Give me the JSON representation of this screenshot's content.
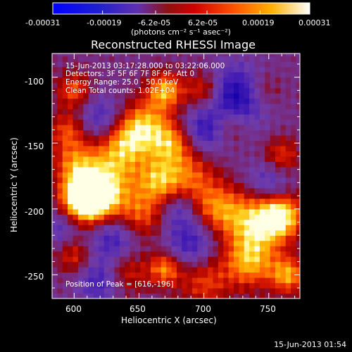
{
  "colorbar": {
    "ticks": [
      "-0.00031",
      "-0.00019",
      "-6.2e-05",
      "6.2e-05",
      "0.00019",
      "0.00031"
    ],
    "tick_values": [
      -0.00031,
      -0.00019,
      -6.2e-05,
      6.2e-05,
      0.00019,
      0.00031
    ],
    "unit_label": "(photons cm⁻² s⁻¹ asec⁻²)"
  },
  "chart_data": {
    "type": "heatmap",
    "title": "Reconstructed RHESSI Image",
    "xlabel": "Heliocentric X (arcsec)",
    "ylabel": "Heliocentric Y (arcsec)",
    "xlim": [
      583,
      774
    ],
    "ylim": [
      -268,
      -82
    ],
    "x_ticks": [
      600,
      650,
      700,
      750
    ],
    "y_ticks": [
      -100,
      -150,
      -200,
      -250
    ],
    "colormap": "Hot (black-blue-purple-red-orange-yellow-white)",
    "value_range": [
      -0.00031,
      0.00031
    ],
    "annotations": [
      "15-Jun-2013 03:17:28.000 to 03:22:06.000",
      "Detectors: 3F 5F 6F 7F 8F 9F, Att 0",
      "Energy Range: 25.0 - 50.0 keV",
      "Clean     Total counts: 1.02E+04",
      "Position of Peak = [616,-196]"
    ],
    "peak": {
      "x": 616,
      "y": -196
    },
    "hotspots": [
      {
        "x": 616,
        "y": -196,
        "v": 1.0,
        "s": 14
      },
      {
        "x": 605,
        "y": -190,
        "v": 0.9,
        "s": 11
      },
      {
        "x": 625,
        "y": -175,
        "v": 0.7,
        "s": 16
      },
      {
        "x": 600,
        "y": -165,
        "v": 0.6,
        "s": 12
      },
      {
        "x": 595,
        "y": -140,
        "v": 0.55,
        "s": 10
      },
      {
        "x": 640,
        "y": -150,
        "v": 0.75,
        "s": 14
      },
      {
        "x": 655,
        "y": -135,
        "v": 0.7,
        "s": 13
      },
      {
        "x": 670,
        "y": -110,
        "v": 0.85,
        "s": 10
      },
      {
        "x": 675,
        "y": -150,
        "v": 0.75,
        "s": 12
      },
      {
        "x": 690,
        "y": -175,
        "v": 0.55,
        "s": 14
      },
      {
        "x": 665,
        "y": -178,
        "v": 0.75,
        "s": 12
      },
      {
        "x": 650,
        "y": -205,
        "v": 0.65,
        "s": 14
      },
      {
        "x": 700,
        "y": -110,
        "v": 0.6,
        "s": 10
      },
      {
        "x": 720,
        "y": -135,
        "v": 0.45,
        "s": 10
      },
      {
        "x": 710,
        "y": -200,
        "v": 0.7,
        "s": 14
      },
      {
        "x": 740,
        "y": -210,
        "v": 0.85,
        "s": 16
      },
      {
        "x": 760,
        "y": -205,
        "v": 0.95,
        "s": 12
      },
      {
        "x": 735,
        "y": -240,
        "v": 0.8,
        "s": 14
      },
      {
        "x": 765,
        "y": -250,
        "v": 0.8,
        "s": 10
      },
      {
        "x": 700,
        "y": -255,
        "v": 0.55,
        "s": 14
      },
      {
        "x": 670,
        "y": -245,
        "v": 0.75,
        "s": 9
      },
      {
        "x": 640,
        "y": -248,
        "v": 0.5,
        "s": 12
      },
      {
        "x": 600,
        "y": -235,
        "v": 0.5,
        "s": 10
      },
      {
        "x": 760,
        "y": -160,
        "v": 0.55,
        "s": 10
      },
      {
        "x": 745,
        "y": -110,
        "v": 0.4,
        "s": 10
      },
      {
        "x": 600,
        "y": -110,
        "v": 0.6,
        "s": 10
      }
    ],
    "coldspots": [
      {
        "x": 725,
        "y": -115,
        "v": -0.9,
        "s": 16
      },
      {
        "x": 700,
        "y": -140,
        "v": -0.6,
        "s": 12
      },
      {
        "x": 620,
        "y": -130,
        "v": -0.5,
        "s": 12
      },
      {
        "x": 630,
        "y": -220,
        "v": -0.7,
        "s": 14
      },
      {
        "x": 690,
        "y": -225,
        "v": -0.6,
        "s": 14
      },
      {
        "x": 620,
        "y": -255,
        "v": -0.55,
        "s": 12
      },
      {
        "x": 750,
        "y": -180,
        "v": -0.5,
        "s": 12
      },
      {
        "x": 680,
        "y": -200,
        "v": -0.4,
        "s": 10
      },
      {
        "x": 590,
        "y": -215,
        "v": -0.4,
        "s": 10
      }
    ]
  },
  "footer": {
    "datetime": "15-Jun-2013 01:54"
  }
}
